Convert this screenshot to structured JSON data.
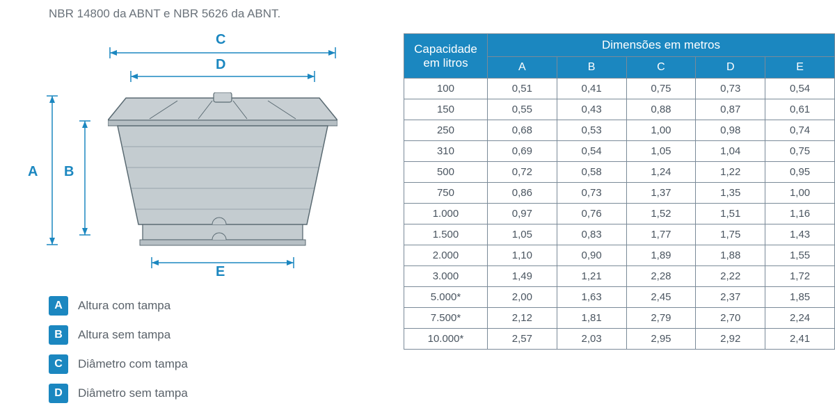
{
  "top_text": "NBR 14800 da ABNT e NBR 5626 da ABNT.",
  "diagram": {
    "labels": {
      "A": "A",
      "B": "B",
      "C": "C",
      "D": "D",
      "E": "E"
    },
    "tank_fill": "#bfc7cc",
    "tank_stroke": "#5a6a72",
    "arrow_color": "#1b87c0"
  },
  "legend": {
    "key_bg": "#1b87c0",
    "key_fg": "#ffffff",
    "items": [
      {
        "key": "A",
        "label": "Altura com tampa"
      },
      {
        "key": "B",
        "label": "Altura sem tampa"
      },
      {
        "key": "C",
        "label": "Diâmetro com tampa"
      },
      {
        "key": "D",
        "label": "Diâmetro sem tampa"
      }
    ]
  },
  "table": {
    "header_bg": "#1b87c0",
    "header_fg": "#ffffff",
    "border_color": "#7a8a98",
    "text_color": "#4a5560",
    "cap_header_line1": "Capacidade",
    "cap_header_line2": "em litros",
    "dim_header": "Dimensões em metros",
    "columns": [
      "A",
      "B",
      "C",
      "D",
      "E"
    ],
    "rows": [
      {
        "cap": "100",
        "v": [
          "0,51",
          "0,41",
          "0,75",
          "0,73",
          "0,54"
        ]
      },
      {
        "cap": "150",
        "v": [
          "0,55",
          "0,43",
          "0,88",
          "0,87",
          "0,61"
        ]
      },
      {
        "cap": "250",
        "v": [
          "0,68",
          "0,53",
          "1,00",
          "0,98",
          "0,74"
        ]
      },
      {
        "cap": "310",
        "v": [
          "0,69",
          "0,54",
          "1,05",
          "1,04",
          "0,75"
        ]
      },
      {
        "cap": "500",
        "v": [
          "0,72",
          "0,58",
          "1,24",
          "1,22",
          "0,95"
        ]
      },
      {
        "cap": "750",
        "v": [
          "0,86",
          "0,73",
          "1,37",
          "1,35",
          "1,00"
        ]
      },
      {
        "cap": "1.000",
        "v": [
          "0,97",
          "0,76",
          "1,52",
          "1,51",
          "1,16"
        ]
      },
      {
        "cap": "1.500",
        "v": [
          "1,05",
          "0,83",
          "1,77",
          "1,75",
          "1,43"
        ]
      },
      {
        "cap": "2.000",
        "v": [
          "1,10",
          "0,90",
          "1,89",
          "1,88",
          "1,55"
        ]
      },
      {
        "cap": "3.000",
        "v": [
          "1,49",
          "1,21",
          "2,28",
          "2,22",
          "1,72"
        ]
      },
      {
        "cap": "5.000*",
        "v": [
          "2,00",
          "1,63",
          "2,45",
          "2,37",
          "1,85"
        ]
      },
      {
        "cap": "7.500*",
        "v": [
          "2,12",
          "1,81",
          "2,79",
          "2,70",
          "2,24"
        ]
      },
      {
        "cap": "10.000*",
        "v": [
          "2,57",
          "2,03",
          "2,95",
          "2,92",
          "2,41"
        ]
      }
    ]
  }
}
